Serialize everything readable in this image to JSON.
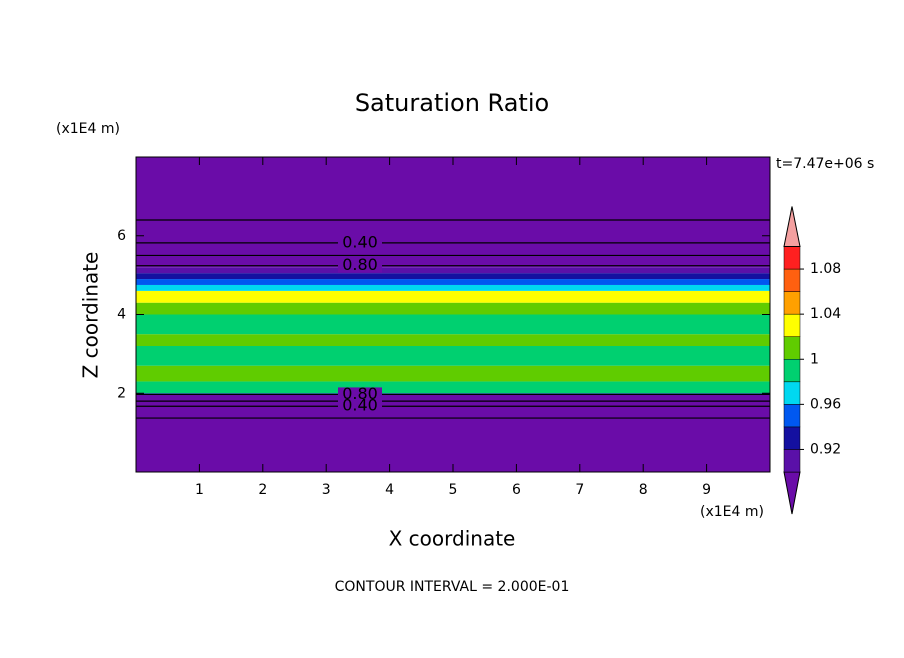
{
  "chart_data": {
    "type": "contour",
    "title": "Saturation Ratio",
    "x_label": "X coordinate",
    "y_label": "Z coordinate",
    "x_unit": "(x1E4 m)",
    "y_unit": "(x1E4 m)",
    "time_label": "t=7.47e+06 s",
    "footnote": "CONTOUR INTERVAL = 2.000E-01",
    "xlim": [
      0,
      10
    ],
    "ylim": [
      0,
      8
    ],
    "xticks": [
      1,
      2,
      3,
      4,
      5,
      6,
      7,
      8,
      9
    ],
    "yticks": [
      2,
      4,
      6
    ],
    "z_bands": [
      0,
      1.97,
      2.0,
      2.3,
      2.7,
      3.2,
      3.5,
      4.0,
      4.3,
      4.6,
      4.75,
      4.9,
      5.05,
      5.2,
      8
    ],
    "band_values": [
      0.5,
      0.93,
      0.99,
      1.01,
      0.99,
      1.01,
      0.99,
      1.01,
      1.03,
      0.97,
      0.95,
      0.93,
      0.91,
      0.5
    ],
    "contours": [
      {
        "z": 6.4
      },
      {
        "z": 5.82,
        "label": "0.40"
      },
      {
        "z": 5.5
      },
      {
        "z": 5.24,
        "label": "0.80"
      },
      {
        "z": 1.97,
        "label": "0.80"
      },
      {
        "z": 1.8
      },
      {
        "z": 1.67,
        "label": "0.40"
      },
      {
        "z": 1.37
      }
    ],
    "levels": [
      0.9,
      0.92,
      0.94,
      0.96,
      0.98,
      1.0,
      1.02,
      1.04,
      1.06,
      1.08,
      1.1
    ],
    "colors": [
      "#6a0ca8",
      "#5a10a8",
      "#1410a0",
      "#0058f0",
      "#00d8f0",
      "#00d070",
      "#60cc00",
      "#ffff00",
      "#ffa000",
      "#ff6010",
      "#ff2020",
      "#f4a0a0"
    ],
    "colorbar_ticks": [
      0.92,
      0.96,
      1,
      1.04,
      1.08
    ]
  }
}
